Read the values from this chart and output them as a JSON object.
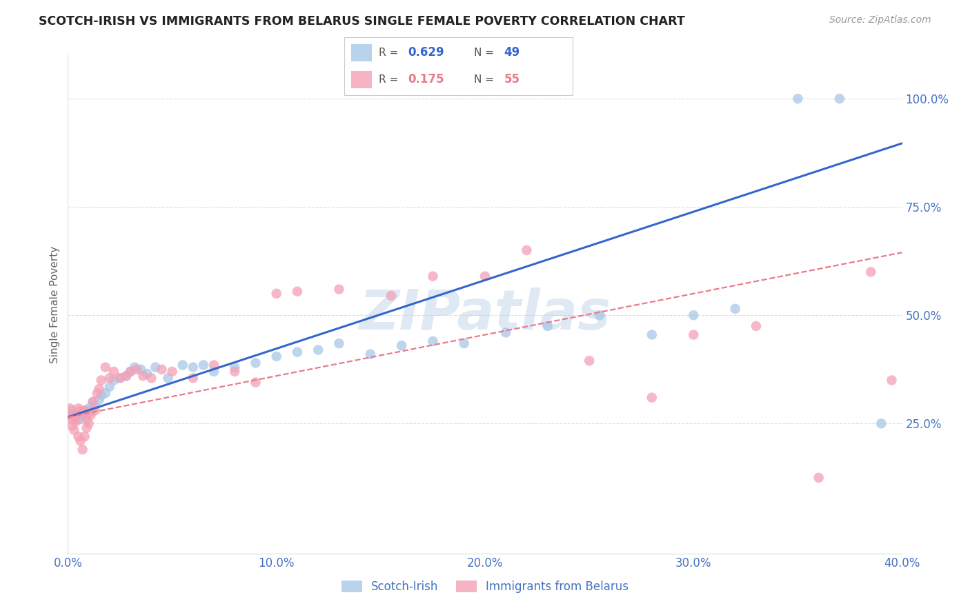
{
  "title": "SCOTCH-IRISH VS IMMIGRANTS FROM BELARUS SINGLE FEMALE POVERTY CORRELATION CHART",
  "source": "Source: ZipAtlas.com",
  "ylabel": "Single Female Poverty",
  "watermark": "ZIPatlas",
  "blue_color": "#a8c8e8",
  "pink_color": "#f4a0b5",
  "blue_line_color": "#3366cc",
  "pink_line_color": "#e87a8a",
  "axis_color": "#4472c4",
  "tick_color": "#4472c4",
  "grid_color": "#dddddd",
  "right_ytick_labels": [
    "25.0%",
    "50.0%",
    "75.0%",
    "100.0%"
  ],
  "right_ytick_vals": [
    0.25,
    0.5,
    0.75,
    1.0
  ],
  "xlim": [
    0.0,
    0.4
  ],
  "ylim": [
    -0.05,
    1.1
  ],
  "xtick_labels": [
    "0.0%",
    "10.0%",
    "20.0%",
    "30.0%",
    "40.0%"
  ],
  "xtick_vals": [
    0.0,
    0.1,
    0.2,
    0.3,
    0.4
  ],
  "blue_x": [
    0.001,
    0.002,
    0.003,
    0.004,
    0.005,
    0.006,
    0.007,
    0.008,
    0.009,
    0.01,
    0.011,
    0.012,
    0.013,
    0.015,
    0.016,
    0.018,
    0.02,
    0.022,
    0.025,
    0.028,
    0.03,
    0.032,
    0.035,
    0.038,
    0.042,
    0.048,
    0.055,
    0.06,
    0.065,
    0.07,
    0.08,
    0.09,
    0.1,
    0.11,
    0.12,
    0.13,
    0.145,
    0.16,
    0.175,
    0.19,
    0.21,
    0.23,
    0.255,
    0.28,
    0.3,
    0.32,
    0.35,
    0.37,
    0.39
  ],
  "blue_y": [
    0.27,
    0.28,
    0.27,
    0.26,
    0.27,
    0.26,
    0.27,
    0.28,
    0.27,
    0.285,
    0.28,
    0.3,
    0.29,
    0.305,
    0.315,
    0.32,
    0.335,
    0.35,
    0.355,
    0.36,
    0.37,
    0.38,
    0.375,
    0.365,
    0.38,
    0.355,
    0.385,
    0.38,
    0.385,
    0.37,
    0.38,
    0.39,
    0.405,
    0.415,
    0.42,
    0.435,
    0.41,
    0.43,
    0.44,
    0.435,
    0.46,
    0.475,
    0.5,
    0.455,
    0.5,
    0.515,
    1.0,
    1.0,
    0.25
  ],
  "pink_x": [
    0.001,
    0.001,
    0.002,
    0.002,
    0.003,
    0.003,
    0.004,
    0.004,
    0.005,
    0.005,
    0.006,
    0.006,
    0.007,
    0.007,
    0.008,
    0.008,
    0.009,
    0.009,
    0.01,
    0.01,
    0.011,
    0.012,
    0.013,
    0.014,
    0.015,
    0.016,
    0.018,
    0.02,
    0.022,
    0.025,
    0.028,
    0.03,
    0.033,
    0.036,
    0.04,
    0.045,
    0.05,
    0.06,
    0.07,
    0.08,
    0.09,
    0.1,
    0.11,
    0.13,
    0.155,
    0.175,
    0.2,
    0.22,
    0.25,
    0.28,
    0.3,
    0.33,
    0.36,
    0.385,
    0.395
  ],
  "pink_y": [
    0.285,
    0.27,
    0.26,
    0.245,
    0.265,
    0.235,
    0.27,
    0.255,
    0.285,
    0.22,
    0.28,
    0.21,
    0.275,
    0.19,
    0.28,
    0.22,
    0.26,
    0.24,
    0.275,
    0.25,
    0.27,
    0.3,
    0.28,
    0.32,
    0.33,
    0.35,
    0.38,
    0.355,
    0.37,
    0.355,
    0.36,
    0.37,
    0.375,
    0.36,
    0.355,
    0.375,
    0.37,
    0.355,
    0.385,
    0.37,
    0.345,
    0.55,
    0.555,
    0.56,
    0.545,
    0.59,
    0.59,
    0.65,
    0.395,
    0.31,
    0.455,
    0.475,
    0.125,
    0.6,
    0.35
  ],
  "legend_blue_r": "0.629",
  "legend_blue_n": "49",
  "legend_pink_r": "0.175",
  "legend_pink_n": "55"
}
